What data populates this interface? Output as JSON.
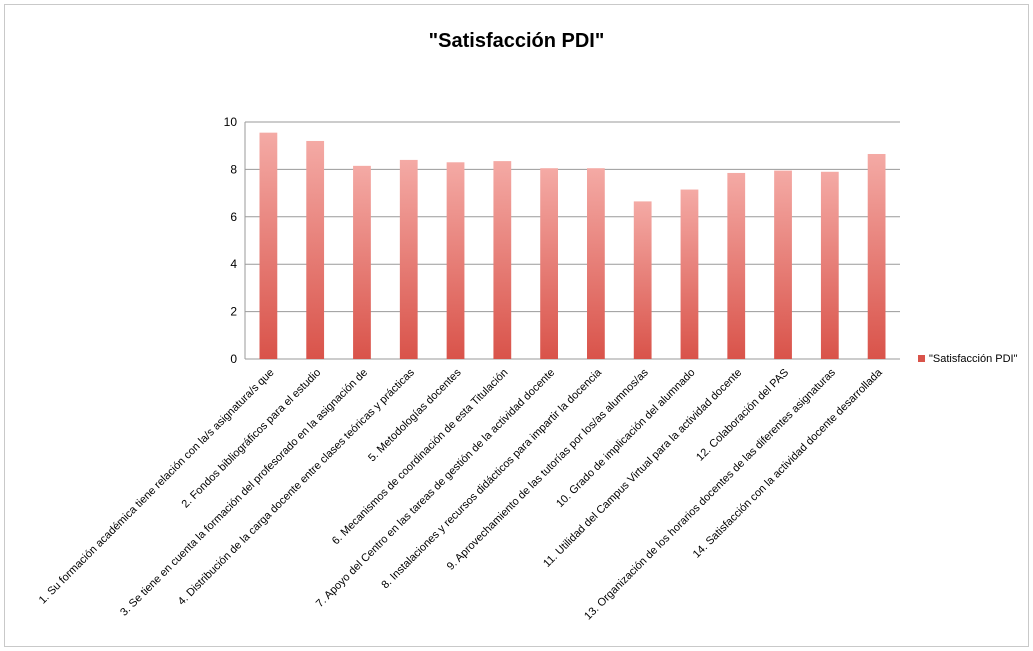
{
  "chart_data": {
    "type": "bar",
    "title": "\"Satisfacción PDI\"",
    "xlabel": "",
    "ylabel": "",
    "ylim": [
      0,
      10
    ],
    "yticks": [
      0,
      2,
      4,
      6,
      8,
      10
    ],
    "grid": true,
    "legend_position": "right",
    "categories": [
      "1. Su formación académica tiene relación con la/s asignatura/s que",
      "2. Fondos bibliográficos para el estudio",
      "3. Se tiene en cuenta la formación del profesorado en la asignación de",
      "4. Distribución de la carga docente entre clases teóricas y prácticas",
      "5. Metodologías docentes",
      "6. Mecanismos de coordinación de esta Titulación",
      "7. Apoyo del Centro en las tareas de gestión de la actividad docente",
      "8. Instalaciones y recursos didácticos para impartir la docencia",
      "9. Aprovechamiento de las tutorías por los/as alumnos/as",
      "10. Grado de implicación del alumnado",
      "11. Utilidad del Campus Virtual para la actividad docente",
      "12. Colaboración del PAS",
      "13. Organización de los horarios docentes de las diferentes asignaturas",
      "14. Satisfacción con la actividad docente desarrollada"
    ],
    "series": [
      {
        "name": "\"Satisfacción PDI\"",
        "color": "#d9534a",
        "values": [
          9.55,
          9.2,
          8.15,
          8.4,
          8.3,
          8.35,
          8.05,
          8.05,
          6.65,
          7.15,
          7.85,
          7.95,
          7.9,
          8.65
        ]
      }
    ]
  }
}
